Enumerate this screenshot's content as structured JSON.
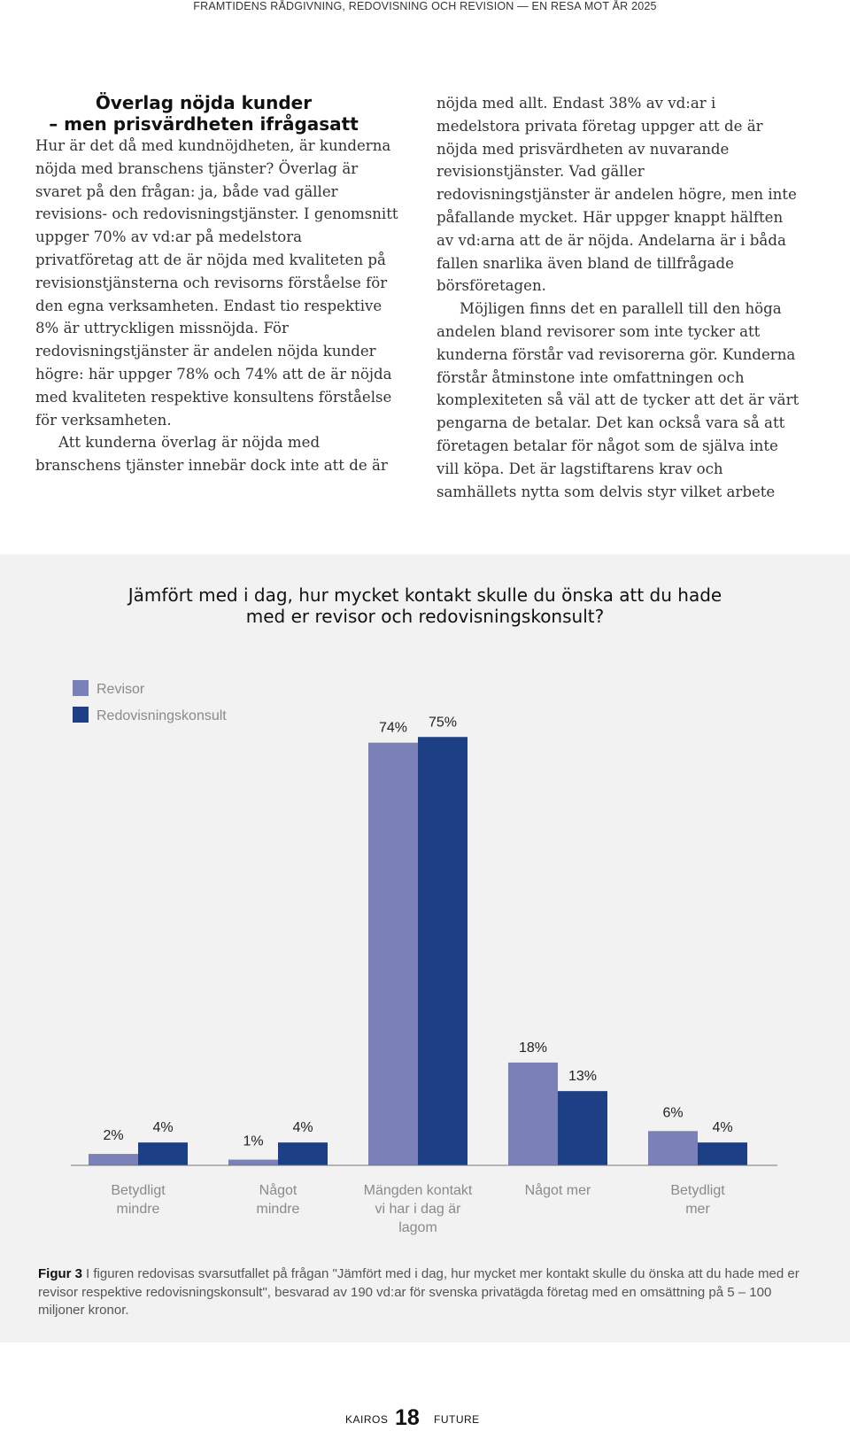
{
  "running_head": "FRAMTIDENS RÅDGIVNING, REDOVISNING OCH REVISION — EN RESA MOT ÅR 2025",
  "article": {
    "headline_line1": "Överlag nöjda kunder",
    "headline_line2": "– men prisvärdheten ifrågasatt",
    "left_paragraph_1": "Hur är det då med kundnöjdheten, är kunderna nöjda med branschens tjänster? Överlag är svaret på den frågan: ja, både vad gäller revisions- och redovisningstjänster. I genomsnitt uppger 70% av vd:ar på medelstora privatföretag att de är nöjda med kvaliteten på revisionstjänsterna och revisorns förståelse för den egna verksamheten. Endast tio respektive 8% är uttryckligen missnöjda. För redovisningstjänster är andelen nöjda kunder högre: här uppger 78% och 74% att de är nöjda med kvaliteten respektive konsultens förståelse för verksamheten.",
    "left_paragraph_2": "Att kunderna överlag är nöjda med branschens tjänster innebär dock inte att de är",
    "right_paragraph_1": "nöjda med allt. Endast 38% av vd:ar i medelstora privata företag uppger att de är nöjda med prisvärdheten av nuvarande revisionstjänster. Vad gäller redovisningstjänster är andelen högre, men inte påfallande mycket. Här uppger knappt hälften av vd:arna att de är nöjda. Andelarna är i båda fallen snarlika även bland de tillfrågade börsföretagen.",
    "right_paragraph_2": "Möjligen finns det en parallell till den höga andelen bland revisorer som inte tycker att kunderna förstår vad revisorerna gör. Kunderna förstår åtminstone inte omfattningen och komplexiteten så väl att de tycker att det är värt pengarna de betalar. Det kan också vara så att företagen betalar för något som de själva inte vill köpa. Det är lagstiftarens krav och samhällets nytta som delvis styr vilket arbete"
  },
  "figure": {
    "title_line1": "Jämfört med i dag, hur mycket kontakt skulle du önska att du hade",
    "title_line2": "med er revisor och redovisningskonsult?",
    "caption_label": "Figur 3",
    "caption_text": "I figuren redovisas svarsutfallet på frågan \"Jämfört med i dag, hur mycket mer kontakt skulle du önska att du hade med er revisor respektive redovisningskonsult\", besvarad av 190 vd:ar för svenska privatägda företag med en omsättning på 5 – 100 miljoner kronor."
  },
  "chart_data": {
    "type": "bar",
    "categories": [
      [
        "Betydligt",
        "mindre"
      ],
      [
        "Något",
        "mindre"
      ],
      [
        "Mängden kontakt",
        "vi har i dag är",
        "lagom"
      ],
      [
        "Något mer"
      ],
      [
        "Betydligt",
        "mer"
      ]
    ],
    "series": [
      {
        "name": "Revisor",
        "color": "#7a80b8",
        "values": [
          2,
          1,
          74,
          18,
          6
        ],
        "labels": [
          "2%",
          "1%",
          "74%",
          "18%",
          "6%"
        ]
      },
      {
        "name": "Redovisningskonsult",
        "color": "#1c3f86",
        "values": [
          4,
          4,
          75,
          13,
          4
        ],
        "labels": [
          "4%",
          "4%",
          "75%",
          "13%",
          "4%"
        ]
      }
    ],
    "ylim": [
      0,
      80
    ],
    "legend_position": "top-left",
    "grid": false
  },
  "footer": {
    "left": "KAIROS",
    "page_number": "18",
    "right": "FUTURE"
  }
}
